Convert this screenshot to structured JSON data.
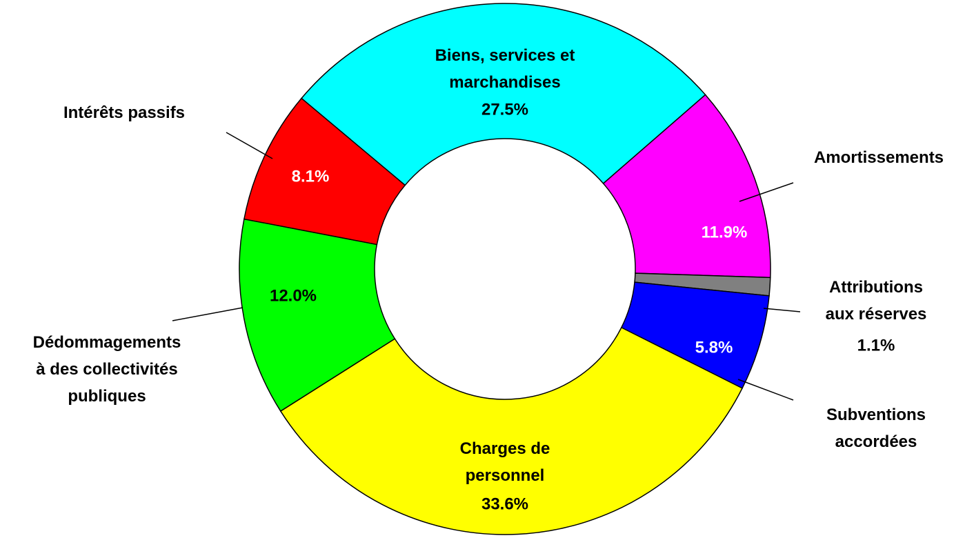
{
  "chart_data": {
    "type": "pie",
    "donut": true,
    "categories": [
      "Biens, services et marchandises",
      "Amortissements",
      "Attributions aux réserves",
      "Subventions accordées",
      "Charges de personnel",
      "Dédommagements à des collectivités publiques",
      "Intérêts passifs"
    ],
    "values": [
      27.5,
      11.9,
      1.1,
      5.8,
      33.6,
      12.0,
      8.1
    ],
    "value_labels": [
      "27.5%",
      "11.9%",
      "1.1%",
      "5.8%",
      "33.6%",
      "12.0%",
      "8.1%"
    ],
    "colors": [
      "#00ffff",
      "#ff00ff",
      "#808080",
      "#0000ff",
      "#ffff00",
      "#00ff00",
      "#ff0000"
    ]
  }
}
